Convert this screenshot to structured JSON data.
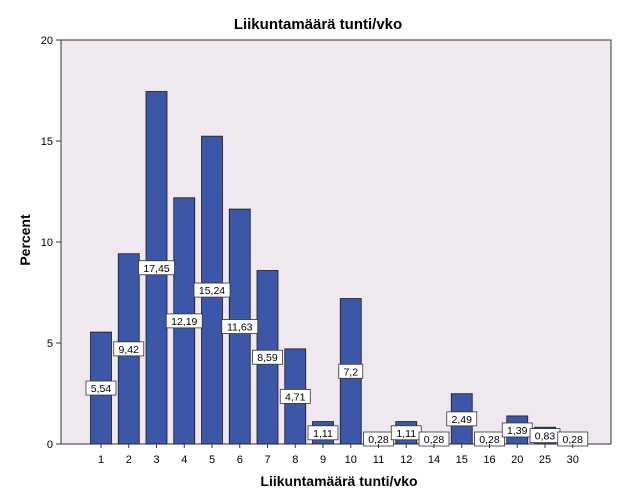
{
  "chart_data": {
    "type": "bar",
    "title": "Liikuntamäärä tunti/vko",
    "xlabel": "Liikuntamäärä tunti/vko",
    "ylabel": "Percent",
    "categories": [
      "1",
      "2",
      "3",
      "4",
      "5",
      "6",
      "7",
      "8",
      "9",
      "10",
      "11",
      "12",
      "14",
      "15",
      "16",
      "20",
      "25",
      "30"
    ],
    "values": [
      5.54,
      9.42,
      17.45,
      12.19,
      15.24,
      11.63,
      8.59,
      4.71,
      1.11,
      7.2,
      0.28,
      1.11,
      0.28,
      2.49,
      0.28,
      1.39,
      0.83,
      0.28
    ],
    "value_labels": [
      "5,54",
      "9,42",
      "17,45",
      "12,19",
      "15,24",
      "11,63",
      "8,59",
      "4,71",
      "1,11",
      "7,2",
      "0,28",
      "1,11",
      "0,28",
      "2,49",
      "0,28",
      "1,39",
      "0,83",
      "0,28"
    ],
    "ylim": [
      0,
      20
    ],
    "yticks": [
      0,
      5,
      10,
      15,
      20
    ],
    "ytick_labels": [
      "0",
      "5",
      "10",
      "15",
      "20"
    ],
    "grid": false,
    "legend": "none",
    "colors": {
      "bar_fill": "#3c56a8",
      "bar_stroke": "#1a1a1a",
      "plot_background": "#f0e8ef",
      "page_background": "#ffffff"
    }
  }
}
